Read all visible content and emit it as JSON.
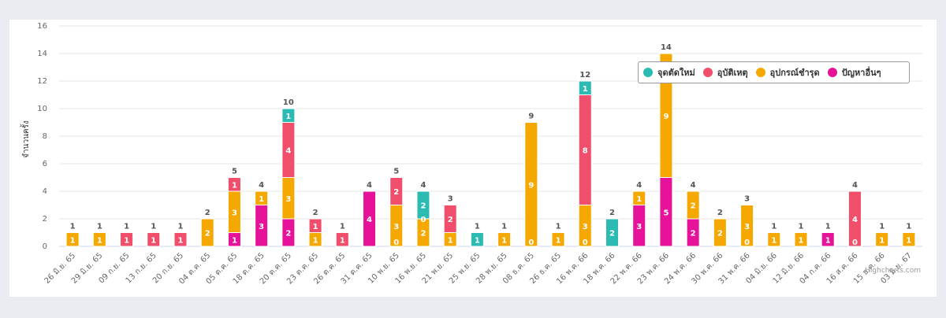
{
  "chart_data": {
    "type": "bar",
    "stacked": true,
    "ylabel": "จำนวนครั้ง",
    "ylim": [
      0,
      16
    ],
    "yticks": [
      0,
      2,
      4,
      6,
      8,
      10,
      12,
      14,
      16
    ],
    "grid": true,
    "legend_position": "top-right",
    "categories": [
      "26 มิ.ย. 65",
      "29 มิ.ย. 65",
      "09 ก.ย. 65",
      "13 ก.ย. 65",
      "20 ก.ย. 65",
      "04 ต.ค. 65",
      "05 ต.ค. 65",
      "18 ต.ค. 65",
      "20 ต.ค. 65",
      "23 ต.ค. 65",
      "26 ต.ค. 65",
      "31 ต.ค. 65",
      "10 พ.ย. 65",
      "16 พ.ย. 65",
      "21 พ.ย. 65",
      "25 พ.ย. 65",
      "28 พ.ย. 65",
      "08 ธ.ค. 65",
      "26 ธ.ค. 65",
      "16 พ.ค. 66",
      "18 พ.ค. 66",
      "22 พ.ค. 66",
      "23 พ.ค. 66",
      "24 พ.ค. 66",
      "30 พ.ค. 66",
      "31 พ.ค. 66",
      "04 มิ.ย. 66",
      "12 มิ.ย. 66",
      "04 ก.ค. 66",
      "16 ส.ค. 66",
      "15 ธ.ค. 66",
      "03 มิ.ย. 67"
    ],
    "totals": [
      1,
      1,
      1,
      1,
      1,
      2,
      5,
      4,
      10,
      2,
      1,
      4,
      5,
      4,
      3,
      1,
      1,
      9,
      1,
      12,
      2,
      4,
      14,
      4,
      2,
      3,
      1,
      1,
      1,
      4,
      1,
      1
    ],
    "series": [
      {
        "name": "จุดตัดใหม่",
        "color": "#2bbbb3",
        "values": [
          0,
          0,
          0,
          0,
          0,
          0,
          0,
          0,
          1,
          0,
          0,
          0,
          0,
          2,
          0,
          1,
          0,
          0,
          0,
          1,
          2,
          0,
          0,
          0,
          0,
          0,
          0,
          0,
          0,
          0,
          0,
          0
        ]
      },
      {
        "name": "อุบัติเหตุ",
        "color": "#f04e6a",
        "values": [
          0,
          0,
          1,
          1,
          1,
          0,
          1,
          0,
          4,
          1,
          1,
          0,
          2,
          0,
          2,
          0,
          0,
          0,
          0,
          8,
          0,
          0,
          0,
          0,
          0,
          0,
          0,
          0,
          0,
          4,
          0,
          0
        ]
      },
      {
        "name": "อุปกรณ์ชำรุด",
        "color": "#f5a800",
        "values": [
          1,
          1,
          0,
          0,
          0,
          2,
          3,
          1,
          3,
          1,
          0,
          0,
          3,
          2,
          1,
          0,
          1,
          9,
          1,
          3,
          0,
          1,
          9,
          2,
          2,
          3,
          1,
          1,
          0,
          0,
          1,
          1
        ]
      },
      {
        "name": "ปัญหาอื่นๆ",
        "color": "#e6139a",
        "values": [
          0,
          0,
          0,
          0,
          0,
          0,
          1,
          3,
          2,
          0,
          0,
          4,
          0,
          0,
          0,
          0,
          0,
          0,
          0,
          0,
          0,
          3,
          5,
          2,
          0,
          0,
          0,
          0,
          1,
          0,
          0,
          0
        ]
      }
    ]
  },
  "credits": "Highcharts.com"
}
